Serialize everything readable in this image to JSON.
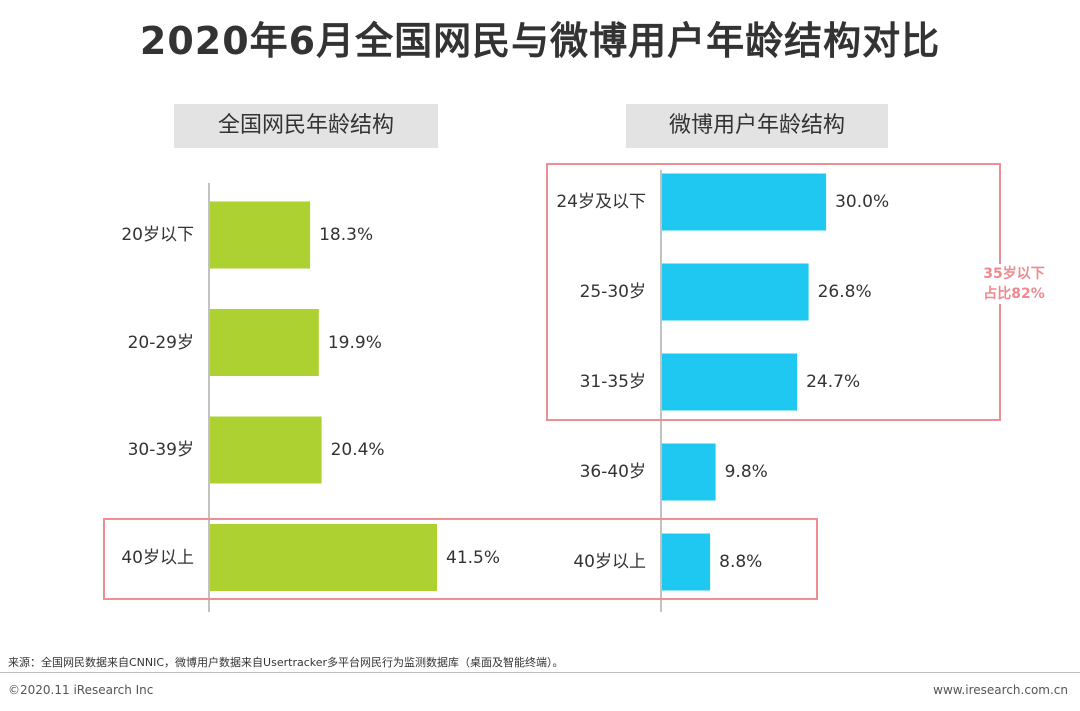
{
  "title": "2020年6月全国网民与微博用户年龄结构对比",
  "callout": {
    "line1": "35岁以下",
    "line2": "占比82%"
  },
  "footer": {
    "source": "来源：全国网民数据来自CNNIC，微博用户数据来自Usertracker多平台网民行为监测数据库（桌面及智能终端）。",
    "copyright": "©2020.11 iResearch Inc",
    "website": "www.iresearch.com.cn"
  },
  "colors": {
    "left_bar": "#aed132",
    "right_bar": "#1fc8f0",
    "highlight": "#ef8e94",
    "axis": "#999999"
  },
  "chart_data": [
    {
      "type": "bar",
      "orientation": "horizontal",
      "title": "全国网民年龄结构",
      "categories": [
        "20岁以下",
        "20-29岁",
        "30-39岁",
        "40岁以上"
      ],
      "values": [
        18.3,
        19.9,
        20.4,
        41.5
      ],
      "labels": [
        "18.3%",
        "19.9%",
        "20.4%",
        "41.5%"
      ],
      "unit": "%"
    },
    {
      "type": "bar",
      "orientation": "horizontal",
      "title": "微博用户年龄结构",
      "categories": [
        "24岁及以下",
        "25-30岁",
        "31-35岁",
        "36-40岁",
        "40岁以上"
      ],
      "values": [
        30.0,
        26.8,
        24.7,
        9.8,
        8.8
      ],
      "labels": [
        "30.0%",
        "26.8%",
        "24.7%",
        "9.8%",
        "8.8%"
      ],
      "unit": "%"
    }
  ]
}
